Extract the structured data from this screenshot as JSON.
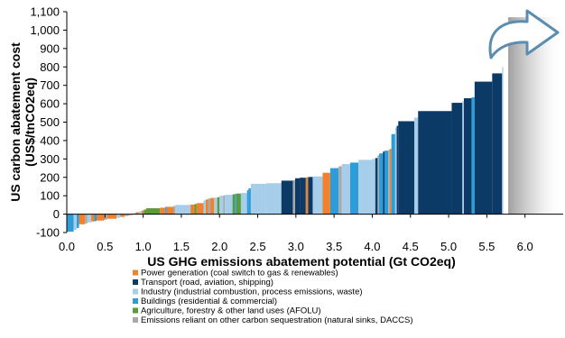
{
  "chart_data": {
    "type": "bar",
    "subtype": "marginal-abatement-cost-curve",
    "xlabel": "US GHG emissions abatement potential  (Gt CO2eq)",
    "ylabel_line1": "US carbon abatement cost",
    "ylabel_line2": "(US$/tnCO2eq)",
    "xlim": [
      0.0,
      6.5
    ],
    "ylim": [
      -100,
      1100
    ],
    "xticks": [
      "0.0",
      "0.5",
      "1.0",
      "1.5",
      "2.0",
      "2.5",
      "3.0",
      "3.5",
      "4.0",
      "4.5",
      "5.0",
      "5.5",
      "6.0"
    ],
    "yticks": [
      "-100",
      "0",
      "100",
      "200",
      "300",
      "400",
      "500",
      "600",
      "700",
      "800",
      "900",
      "1,000",
      "1,100"
    ],
    "grid": false,
    "legend_position": "bottom",
    "categories": {
      "power": {
        "label": "Power generation (coal switch to gas & renewables)",
        "color": "#F0822E"
      },
      "transport": {
        "label": "Transport (road, aviation, shipping)",
        "color": "#0B3A66"
      },
      "industry": {
        "label": "Industry (industrial combustion, process emissions, waste)",
        "color": "#A6CEEA"
      },
      "buildings": {
        "label": "Buildings (residential & commercial)",
        "color": "#2D9CD8"
      },
      "afolu": {
        "label": "Agriculture, forestry & other land uses (AFOLU)",
        "color": "#5B9C3A"
      },
      "sequestration": {
        "label": "Emissions reliant on other carbon sequestration (natural sinks, DACCS)",
        "color": "#A9A9A9"
      }
    },
    "legend_order": [
      "power",
      "transport",
      "industry",
      "buildings",
      "afolu",
      "sequestration"
    ],
    "bars": [
      {
        "c": "buildings",
        "w": 0.09,
        "v": -95
      },
      {
        "c": "industry",
        "w": 0.04,
        "v": -85
      },
      {
        "c": "buildings",
        "w": 0.03,
        "v": -75
      },
      {
        "c": "power",
        "w": 0.08,
        "v": -55
      },
      {
        "c": "sequestration",
        "w": 0.03,
        "v": -50
      },
      {
        "c": "industry",
        "w": 0.05,
        "v": -45
      },
      {
        "c": "power",
        "w": 0.04,
        "v": -40
      },
      {
        "c": "buildings",
        "w": 0.03,
        "v": -38
      },
      {
        "c": "power",
        "w": 0.1,
        "v": -35
      },
      {
        "c": "sequestration",
        "w": 0.04,
        "v": -30
      },
      {
        "c": "power",
        "w": 0.12,
        "v": -25
      },
      {
        "c": "industry",
        "w": 0.05,
        "v": -20
      },
      {
        "c": "power",
        "w": 0.06,
        "v": -15
      },
      {
        "c": "sequestration",
        "w": 0.05,
        "v": -10
      },
      {
        "c": "power",
        "w": 0.05,
        "v": -5
      },
      {
        "c": "industry",
        "w": 0.04,
        "v": 5
      },
      {
        "c": "power",
        "w": 0.04,
        "v": 10
      },
      {
        "c": "industry",
        "w": 0.04,
        "v": 15
      },
      {
        "c": "power",
        "w": 0.03,
        "v": 20
      },
      {
        "c": "afolu",
        "w": 0.03,
        "v": 25
      },
      {
        "c": "afolu",
        "w": 0.18,
        "v": 32
      },
      {
        "c": "power",
        "w": 0.07,
        "v": 35
      },
      {
        "c": "buildings",
        "w": 0.02,
        "v": 40
      },
      {
        "c": "power",
        "w": 0.09,
        "v": 40
      },
      {
        "c": "sequestration",
        "w": 0.02,
        "v": 45
      },
      {
        "c": "industry",
        "w": 0.2,
        "v": 50
      },
      {
        "c": "power",
        "w": 0.05,
        "v": 52
      },
      {
        "c": "afolu",
        "w": 0.03,
        "v": 55
      },
      {
        "c": "power",
        "w": 0.09,
        "v": 60
      },
      {
        "c": "industry",
        "w": 0.03,
        "v": 75
      },
      {
        "c": "power",
        "w": 0.03,
        "v": 80
      },
      {
        "c": "sequestration",
        "w": 0.03,
        "v": 85
      },
      {
        "c": "power",
        "w": 0.05,
        "v": 88
      },
      {
        "c": "industry",
        "w": 0.04,
        "v": 90
      },
      {
        "c": "afolu",
        "w": 0.03,
        "v": 92
      },
      {
        "c": "industry",
        "w": 0.05,
        "v": 100
      },
      {
        "c": "sequestration",
        "w": 0.02,
        "v": 102
      },
      {
        "c": "industry",
        "w": 0.1,
        "v": 105
      },
      {
        "c": "afolu",
        "w": 0.03,
        "v": 108
      },
      {
        "c": "buildings",
        "w": 0.02,
        "v": 110
      },
      {
        "c": "afolu",
        "w": 0.06,
        "v": 112
      },
      {
        "c": "industry",
        "w": 0.08,
        "v": 115
      },
      {
        "c": "buildings",
        "w": 0.02,
        "v": 130
      },
      {
        "c": "buildings",
        "w": 0.03,
        "v": 140
      },
      {
        "c": "industry",
        "w": 0.2,
        "v": 165
      },
      {
        "c": "industry",
        "w": 0.2,
        "v": 168
      },
      {
        "c": "transport",
        "w": 0.15,
        "v": 182
      },
      {
        "c": "sequestration",
        "w": 0.03,
        "v": 185
      },
      {
        "c": "transport",
        "w": 0.06,
        "v": 195
      },
      {
        "c": "transport",
        "w": 0.08,
        "v": 198
      },
      {
        "c": "power",
        "w": 0.03,
        "v": 200
      },
      {
        "c": "transport",
        "w": 0.06,
        "v": 202
      },
      {
        "c": "industry",
        "w": 0.13,
        "v": 205
      },
      {
        "c": "power",
        "w": 0.1,
        "v": 225
      },
      {
        "c": "buildings",
        "w": 0.11,
        "v": 250
      },
      {
        "c": "sequestration",
        "w": 0.04,
        "v": 260
      },
      {
        "c": "industry",
        "w": 0.11,
        "v": 272
      },
      {
        "c": "buildings",
        "w": 0.11,
        "v": 280
      },
      {
        "c": "industry",
        "w": 0.18,
        "v": 295
      },
      {
        "c": "industry",
        "w": 0.04,
        "v": 300
      },
      {
        "c": "transport",
        "w": 0.03,
        "v": 305
      },
      {
        "c": "sequestration",
        "w": 0.02,
        "v": 320
      },
      {
        "c": "buildings",
        "w": 0.05,
        "v": 330
      },
      {
        "c": "transport",
        "w": 0.02,
        "v": 340
      },
      {
        "c": "buildings",
        "w": 0.05,
        "v": 345
      },
      {
        "c": "sequestration",
        "w": 0.02,
        "v": 350
      },
      {
        "c": "power",
        "w": 0.02,
        "v": 355
      },
      {
        "c": "buildings",
        "w": 0.05,
        "v": 435
      },
      {
        "c": "industry",
        "w": 0.02,
        "v": 470
      },
      {
        "c": "transport",
        "w": 0.02,
        "v": 480
      },
      {
        "c": "transport",
        "w": 0.21,
        "v": 505
      },
      {
        "c": "industry",
        "w": 0.05,
        "v": 525
      },
      {
        "c": "transport",
        "w": 0.44,
        "v": 560
      },
      {
        "c": "transport",
        "w": 0.14,
        "v": 605
      },
      {
        "c": "industry",
        "w": 0.02,
        "v": 615
      },
      {
        "c": "transport",
        "w": 0.1,
        "v": 630
      },
      {
        "c": "buildings",
        "w": 0.04,
        "v": 635
      },
      {
        "c": "transport",
        "w": 0.23,
        "v": 720
      },
      {
        "c": "transport",
        "w": 0.13,
        "v": 765
      },
      {
        "c": "industry",
        "w": 0.015,
        "v": 800
      }
    ],
    "shaded_region": {
      "x_start": 5.78,
      "x_end": 6.5,
      "y_top": 1070
    }
  }
}
